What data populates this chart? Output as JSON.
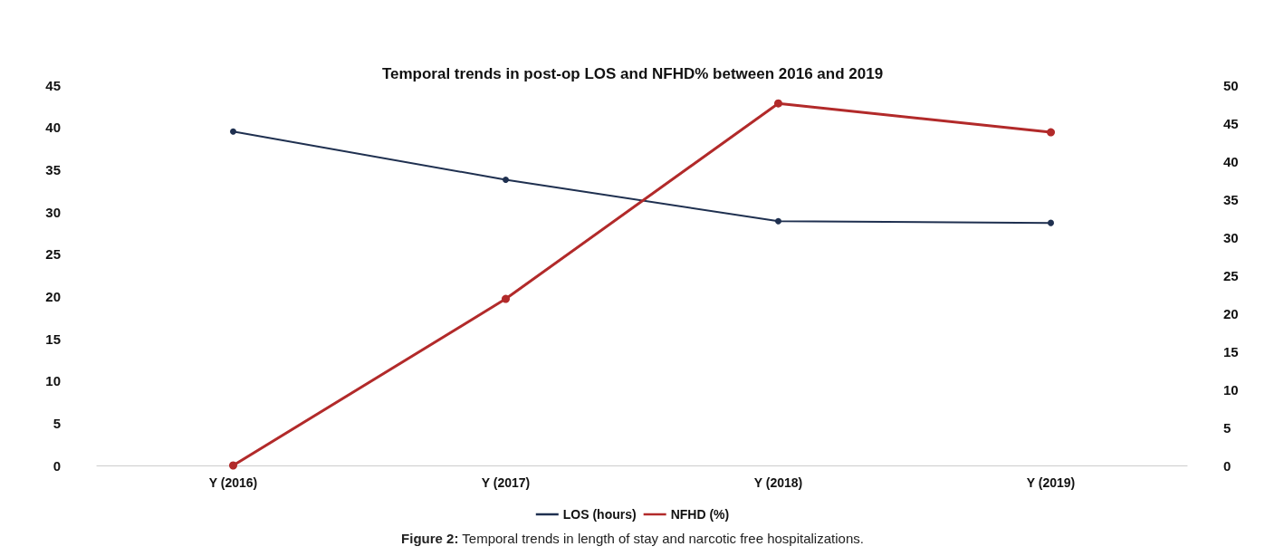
{
  "chart_data": {
    "type": "line",
    "title": "Temporal trends in post-op LOS and NFHD% between 2016 and 2019",
    "categories": [
      "Y (2016)",
      "Y (2017)",
      "Y (2018)",
      "Y (2019)"
    ],
    "series": [
      {
        "name": "LOS (hours)",
        "color": "#1f3050",
        "values": [
          39.5,
          33.8,
          28.9,
          28.7
        ]
      },
      {
        "name": "NFHD (%)",
        "color": "#b22a2a",
        "values": [
          0,
          21.9,
          47.6,
          43.8
        ],
        "axis": "y2"
      }
    ],
    "ylim": [
      0,
      45
    ],
    "yticks": [
      0,
      5,
      10,
      15,
      20,
      25,
      30,
      35,
      40,
      45
    ],
    "y2lim": [
      0,
      50
    ],
    "y2ticks": [
      0,
      5,
      10,
      15,
      20,
      25,
      30,
      35,
      40,
      45,
      50
    ],
    "grid": false,
    "legend": "bottom",
    "marker": "circle",
    "line_style": "solid",
    "annotations": [
      "Figure 2: Temporal trends in length of stay and narcotic free hospitalizations."
    ]
  }
}
